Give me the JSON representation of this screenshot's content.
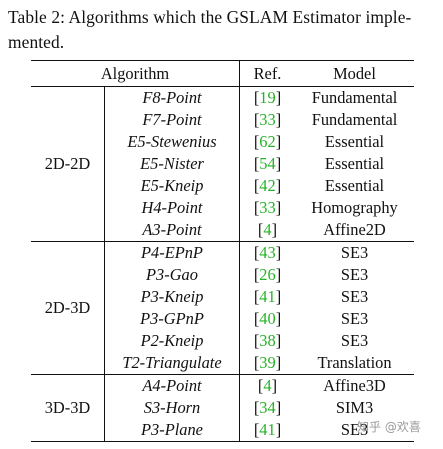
{
  "caption": {
    "line1": "Table 2: Algorithms which the GSLAM Estimator imple-",
    "line2": "mented."
  },
  "table": {
    "headers": {
      "algorithm": "Algorithm",
      "ref": "Ref.",
      "model": "Model"
    },
    "groups": [
      {
        "label": "2D-2D",
        "rows": [
          {
            "algorithm": "F8-Point",
            "ref": "19",
            "model": "Fundamental"
          },
          {
            "algorithm": "F7-Point",
            "ref": "33",
            "model": "Fundamental"
          },
          {
            "algorithm": "E5-Stewenius",
            "ref": "62",
            "model": "Essential"
          },
          {
            "algorithm": "E5-Nister",
            "ref": "54",
            "model": "Essential"
          },
          {
            "algorithm": "E5-Kneip",
            "ref": "42",
            "model": "Essential"
          },
          {
            "algorithm": "H4-Point",
            "ref": "33",
            "model": "Homography"
          },
          {
            "algorithm": "A3-Point",
            "ref": "4",
            "model": "Affine2D"
          }
        ]
      },
      {
        "label": "2D-3D",
        "rows": [
          {
            "algorithm": "P4-EPnP",
            "ref": "43",
            "model": "SE3"
          },
          {
            "algorithm": "P3-Gao",
            "ref": "26",
            "model": "SE3"
          },
          {
            "algorithm": "P3-Kneip",
            "ref": "41",
            "model": "SE3"
          },
          {
            "algorithm": "P3-GPnP",
            "ref": "40",
            "model": "SE3"
          },
          {
            "algorithm": "P2-Kneip",
            "ref": "38",
            "model": "SE3"
          },
          {
            "algorithm": "T2-Triangulate",
            "ref": "39",
            "model": "Translation"
          }
        ]
      },
      {
        "label": "3D-3D",
        "rows": [
          {
            "algorithm": "A4-Point",
            "ref": "4",
            "model": "Affine3D"
          },
          {
            "algorithm": "S3-Horn",
            "ref": "34",
            "model": "SIM3"
          },
          {
            "algorithm": "P3-Plane",
            "ref": "41",
            "model": "SE3"
          }
        ]
      }
    ]
  },
  "watermark": "知乎 @欢喜",
  "colors": {
    "citation": "#27b327",
    "text": "#111111"
  }
}
